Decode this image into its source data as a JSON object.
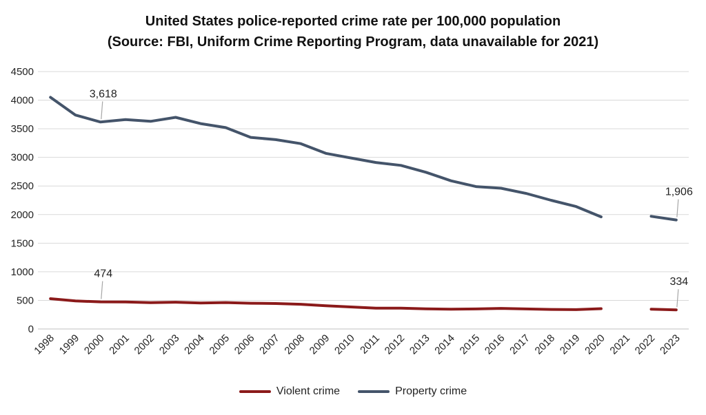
{
  "chart_data": {
    "type": "line",
    "title": "United States police-reported crime rate per 100,000 population",
    "subtitle": "(Source: FBI, Uniform Crime Reporting Program, data unavailable for 2021)",
    "categories": [
      "1998",
      "1999",
      "2000",
      "2001",
      "2002",
      "2003",
      "2004",
      "2005",
      "2006",
      "2007",
      "2008",
      "2009",
      "2010",
      "2011",
      "2012",
      "2013",
      "2014",
      "2015",
      "2016",
      "2017",
      "2018",
      "2019",
      "2020",
      "2021",
      "2022",
      "2023"
    ],
    "ylim": [
      0,
      4500
    ],
    "yticks": [
      "0",
      "500",
      "1000",
      "1500",
      "2000",
      "2500",
      "3000",
      "3500",
      "4000",
      "4500"
    ],
    "grid": true,
    "legend_position": "bottom",
    "series": [
      {
        "name": "Violent crime",
        "color": "#8b1a1a",
        "values": [
          530,
          490,
          474,
          472,
          460,
          468,
          455,
          462,
          450,
          445,
          432,
          405,
          385,
          365,
          365,
          352,
          345,
          350,
          360,
          350,
          342,
          338,
          355,
          null,
          345,
          334
        ],
        "labels": [
          {
            "index": 2,
            "text": "474"
          },
          {
            "index": 25,
            "text": "334"
          }
        ]
      },
      {
        "name": "Property crime",
        "color": "#44546a",
        "values": [
          4050,
          3740,
          3618,
          3660,
          3630,
          3700,
          3590,
          3520,
          3350,
          3310,
          3240,
          3070,
          2990,
          2910,
          2860,
          2740,
          2590,
          2490,
          2460,
          2370,
          2250,
          2140,
          1960,
          null,
          1970,
          1906
        ],
        "labels": [
          {
            "index": 2,
            "text": "3,618"
          },
          {
            "index": 25,
            "text": "1,906"
          }
        ]
      }
    ]
  }
}
